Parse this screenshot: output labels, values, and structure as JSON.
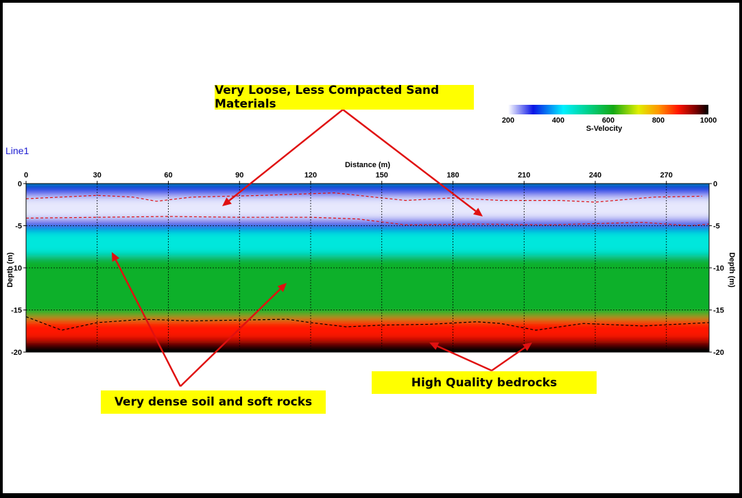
{
  "chart_data": {
    "type": "heatmap",
    "line_name": "Line1",
    "xlabel": "Distance (m)",
    "ylabel": "Depth (m)",
    "xlim": [
      0,
      288
    ],
    "ylim": [
      0,
      -20
    ],
    "x_ticks": [
      0,
      30,
      60,
      90,
      120,
      150,
      180,
      210,
      240,
      270
    ],
    "y_ticks": [
      0,
      -5,
      -10,
      -15,
      -20
    ],
    "grid": true,
    "colorbar": {
      "label": "S-Velocity",
      "range": [
        200,
        1000
      ],
      "ticks": [
        200,
        400,
        600,
        800,
        1000
      ],
      "stops": [
        {
          "v": 200,
          "color": "#ffffff"
        },
        {
          "v": 300,
          "color": "#0a14e6"
        },
        {
          "v": 420,
          "color": "#00f0ff"
        },
        {
          "v": 520,
          "color": "#00d18a"
        },
        {
          "v": 620,
          "color": "#14a814"
        },
        {
          "v": 720,
          "color": "#e0ef00"
        },
        {
          "v": 800,
          "color": "#ff9800"
        },
        {
          "v": 880,
          "color": "#ff1400"
        },
        {
          "v": 950,
          "color": "#7a0000"
        },
        {
          "v": 1000,
          "color": "#000000"
        }
      ]
    },
    "layers": [
      {
        "name": "top",
        "velocity": 320,
        "top_depth": 0,
        "bottom_depth": -1.5
      },
      {
        "name": "loose-sand",
        "velocity": 210,
        "top_depth": -1.5,
        "bottom_depth": -4.3
      },
      {
        "name": "transition",
        "velocity": 300,
        "top_depth": -4.3,
        "bottom_depth": -5.5
      },
      {
        "name": "dense-soil-upper",
        "velocity": 450,
        "top_depth": -5.5,
        "bottom_depth": -8.5
      },
      {
        "name": "dense-soil",
        "velocity": 600,
        "top_depth": -8.5,
        "bottom_depth": -16
      },
      {
        "name": "bedrock",
        "velocity": 880,
        "top_depth": -16,
        "bottom_depth": -20
      }
    ],
    "boundary_upper_red": {
      "x": [
        0,
        30,
        45,
        55,
        70,
        100,
        130,
        160,
        180,
        200,
        225,
        240,
        265,
        285
      ],
      "depth": [
        -1.8,
        -1.4,
        -1.6,
        -2.1,
        -1.6,
        -1.4,
        -1.1,
        -2.0,
        -1.7,
        -2.0,
        -2.0,
        -2.2,
        -1.6,
        -1.5
      ]
    },
    "boundary_lower_red": {
      "x": [
        0,
        30,
        60,
        90,
        120,
        140,
        160,
        190,
        220,
        260,
        280,
        288
      ],
      "depth": [
        -4.1,
        -4.0,
        -3.9,
        -4.0,
        -4.0,
        -4.2,
        -4.9,
        -4.8,
        -4.9,
        -4.6,
        -5.0,
        -4.8
      ]
    },
    "boundary_black": {
      "x": [
        0,
        15,
        30,
        50,
        70,
        90,
        110,
        120,
        135,
        150,
        170,
        190,
        200,
        215,
        235,
        260,
        288
      ],
      "depth": [
        -15.8,
        -17.4,
        -16.5,
        -16.1,
        -16.3,
        -16.2,
        -16.1,
        -16.5,
        -17.0,
        -16.8,
        -16.7,
        -16.4,
        -16.6,
        -17.4,
        -16.6,
        -16.9,
        -16.5
      ]
    }
  },
  "annotations": {
    "loose_sand": "Very Loose, Less Compacted Sand Materials",
    "dense_soil": "Very dense soil and soft rocks",
    "bedrock": "High Quality bedrocks",
    "arrow_color": "#e01010"
  }
}
